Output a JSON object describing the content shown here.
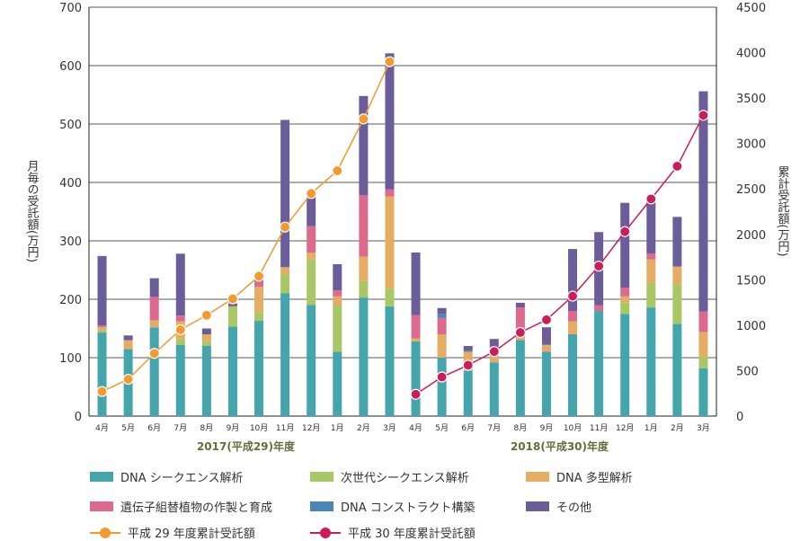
{
  "chart_data": {
    "type": "bar",
    "stacked": true,
    "y_left_label": "月毎の受託額(万円)",
    "y_right_label": "累計受託額(万円)",
    "ylim_left": [
      0,
      700
    ],
    "ylim_right": [
      0,
      4500
    ],
    "y_left_ticks": [
      "0",
      "100",
      "200",
      "300",
      "400",
      "500",
      "600",
      "700"
    ],
    "y_right_ticks": [
      "0",
      "500",
      "1000",
      "1500",
      "2000",
      "2500",
      "3000",
      "3500",
      "4000",
      "4500"
    ],
    "categories": [
      "4月",
      "5月",
      "6月",
      "7月",
      "8月",
      "9月",
      "10月",
      "11月",
      "12月",
      "1月",
      "2月",
      "3月",
      "4月",
      "5月",
      "6月",
      "7月",
      "8月",
      "9月",
      "10月",
      "11月",
      "12月",
      "1月",
      "2月",
      "3月"
    ],
    "year_labels": [
      "2017(平成29)年度",
      "2018(平成30)年度"
    ],
    "series": [
      {
        "name": "DNA シークエンス解析",
        "color": "#45a5ad",
        "values": [
          143,
          115,
          152,
          122,
          120,
          153,
          163,
          210,
          190,
          110,
          203,
          188,
          128,
          100,
          78,
          92,
          130,
          110,
          140,
          180,
          175,
          186,
          158,
          82
        ]
      },
      {
        "name": "次世代シークエンス解析",
        "color": "#a9c765",
        "values": [
          4,
          0,
          0,
          10,
          8,
          35,
          15,
          33,
          78,
          80,
          28,
          30,
          0,
          0,
          0,
          0,
          0,
          0,
          0,
          0,
          20,
          42,
          68,
          20
        ]
      },
      {
        "name": "DNA 多型解析",
        "color": "#e5ac63",
        "values": [
          5,
          15,
          12,
          30,
          12,
          0,
          43,
          12,
          12,
          15,
          42,
          158,
          5,
          40,
          32,
          22,
          6,
          12,
          22,
          0,
          10,
          40,
          30,
          42
        ]
      },
      {
        "name": "遺伝子組替植物の作製と育成",
        "color": "#dd6a8c",
        "values": [
          3,
          0,
          40,
          10,
          0,
          0,
          10,
          0,
          45,
          10,
          105,
          12,
          40,
          28,
          0,
          5,
          50,
          0,
          18,
          10,
          15,
          10,
          0,
          35
        ]
      },
      {
        "name": "DNA コンストラクト構築",
        "color": "#4a85b5",
        "values": [
          0,
          0,
          0,
          0,
          0,
          0,
          0,
          0,
          0,
          0,
          0,
          0,
          0,
          7,
          2,
          0,
          0,
          0,
          0,
          0,
          0,
          0,
          0,
          0
        ]
      },
      {
        "name": "その他",
        "color": "#6a5d99",
        "values": [
          119,
          8,
          32,
          106,
          10,
          5,
          5,
          252,
          50,
          45,
          170,
          233,
          107,
          10,
          8,
          13,
          8,
          30,
          106,
          125,
          145,
          90,
          85,
          377
        ]
      }
    ],
    "lines": [
      {
        "name": "平成 29 年度累計受託額",
        "color": "#f29a2e",
        "axis": "right",
        "values": [
          270,
          405,
          690,
          950,
          1110,
          1290,
          1540,
          2080,
          2450,
          2700,
          3270,
          3900
        ]
      },
      {
        "name": "平成 30 年度累計受託額",
        "color": "#cc1d5b",
        "axis": "right",
        "values": [
          240,
          430,
          560,
          710,
          920,
          1060,
          1320,
          1650,
          2030,
          2390,
          2750,
          3310
        ]
      }
    ]
  },
  "legend": {
    "items": [
      {
        "label": "DNA シークエンス解析",
        "color": "#45a5ad"
      },
      {
        "label": "次世代シークエンス解析",
        "color": "#a9c765"
      },
      {
        "label": "DNA 多型解析",
        "color": "#e5ac63"
      },
      {
        "label": "遺伝子組替植物の作製と育成",
        "color": "#dd6a8c"
      },
      {
        "label": "DNA コンストラクト構築",
        "color": "#4a85b5"
      },
      {
        "label": "その他",
        "color": "#6a5d99"
      },
      {
        "label": "平成 29 年度累計受託額",
        "color": "#f29a2e"
      },
      {
        "label": "平成 30 年度累計受託額",
        "color": "#cc1d5b"
      }
    ]
  }
}
